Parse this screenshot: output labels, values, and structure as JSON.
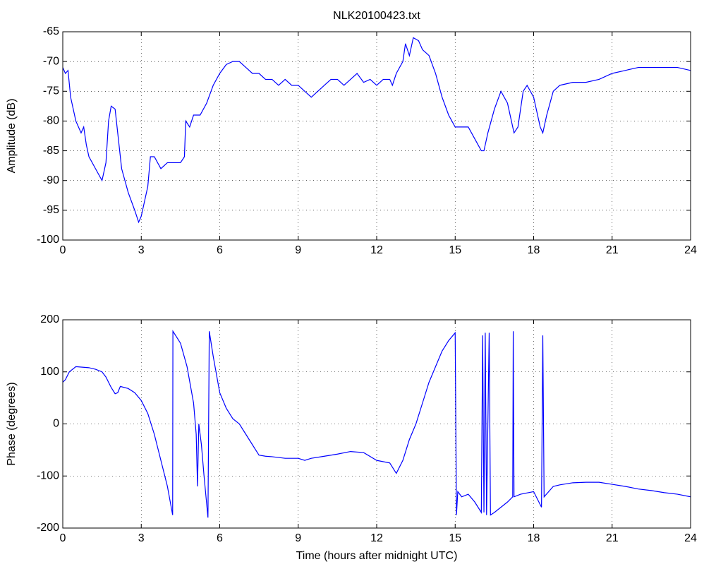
{
  "chart_data": [
    {
      "type": "line",
      "title": "NLK20100423.txt",
      "y_label": "Amplitude (dB)",
      "xlim": [
        0,
        24
      ],
      "xticks": [
        0,
        3,
        6,
        9,
        12,
        15,
        18,
        21,
        24
      ],
      "ylim": [
        -100,
        -65
      ],
      "yticks": [
        -100,
        -95,
        -90,
        -85,
        -80,
        -75,
        -70,
        -65
      ],
      "grid": true,
      "x": [
        0,
        0.1,
        0.2,
        0.3,
        0.5,
        0.7,
        0.8,
        0.9,
        1.0,
        1.25,
        1.5,
        1.65,
        1.75,
        1.85,
        2.0,
        2.1,
        2.25,
        2.5,
        2.75,
        2.9,
        3.0,
        3.1,
        3.25,
        3.35,
        3.5,
        3.75,
        4.0,
        4.25,
        4.5,
        4.65,
        4.7,
        4.85,
        5.0,
        5.25,
        5.5,
        5.75,
        6.0,
        6.25,
        6.5,
        6.75,
        7.0,
        7.25,
        7.5,
        7.75,
        8.0,
        8.25,
        8.5,
        8.75,
        9.0,
        9.25,
        9.5,
        9.75,
        10.0,
        10.25,
        10.5,
        10.75,
        11.0,
        11.25,
        11.5,
        11.75,
        12.0,
        12.25,
        12.5,
        12.6,
        12.75,
        13.0,
        13.1,
        13.25,
        13.4,
        13.6,
        13.75,
        14.0,
        14.25,
        14.5,
        14.75,
        15.0,
        15.25,
        15.5,
        15.75,
        16.0,
        16.1,
        16.25,
        16.5,
        16.75,
        17.0,
        17.25,
        17.4,
        17.6,
        17.75,
        18.0,
        18.25,
        18.35,
        18.5,
        18.75,
        19.0,
        19.5,
        20.0,
        20.5,
        21.0,
        21.5,
        22.0,
        22.5,
        23.0,
        23.5,
        24.0
      ],
      "series": [
        {
          "name": "Amplitude",
          "color": "#0000ff",
          "values": [
            -71,
            -72,
            -71.5,
            -76,
            -80,
            -82,
            -81,
            -84,
            -86,
            -88,
            -90,
            -87,
            -80,
            -77.5,
            -78,
            -82,
            -88,
            -92,
            -95,
            -97,
            -96,
            -94,
            -91,
            -86,
            -86,
            -88,
            -87,
            -87,
            -87,
            -86,
            -80,
            -81,
            -79,
            -79,
            -77,
            -74,
            -72,
            -70.5,
            -70,
            -70,
            -71,
            -72,
            -72,
            -73,
            -73,
            -74,
            -73,
            -74,
            -74,
            -75,
            -76,
            -75,
            -74,
            -73,
            -73,
            -74,
            -73,
            -72,
            -73.5,
            -73,
            -74,
            -73,
            -73,
            -74,
            -72,
            -70,
            -67,
            -69,
            -66,
            -66.5,
            -68,
            -69,
            -72,
            -76,
            -79,
            -81,
            -81,
            -81,
            -83,
            -85,
            -85,
            -82,
            -78,
            -75,
            -77,
            -82,
            -81,
            -75,
            -74,
            -76,
            -81,
            -82,
            -79,
            -75,
            -74,
            -73.5,
            -73.5,
            -73,
            -72,
            -71.5,
            -71,
            -71,
            -71,
            -71,
            -71.5
          ]
        }
      ]
    },
    {
      "type": "line",
      "y_label": "Phase (degrees)",
      "x_label": "Time (hours after midnight UTC)",
      "xlim": [
        0,
        24
      ],
      "xticks": [
        0,
        3,
        6,
        9,
        12,
        15,
        18,
        21,
        24
      ],
      "ylim": [
        -200,
        200
      ],
      "yticks": [
        -200,
        -100,
        0,
        100,
        200
      ],
      "grid": true,
      "x": [
        0,
        0.1,
        0.25,
        0.5,
        1.0,
        1.25,
        1.5,
        1.65,
        1.85,
        2.0,
        2.1,
        2.2,
        2.5,
        2.75,
        3.0,
        3.25,
        3.5,
        3.75,
        4.0,
        4.2,
        4.21,
        4.5,
        4.75,
        5.0,
        5.1,
        5.15,
        5.2,
        5.3,
        5.4,
        5.55,
        5.6,
        5.75,
        6.0,
        6.25,
        6.5,
        6.75,
        7.0,
        7.25,
        7.5,
        7.75,
        8.0,
        8.5,
        9.0,
        9.25,
        9.5,
        10.0,
        10.5,
        11.0,
        11.5,
        12.0,
        12.5,
        12.75,
        13.0,
        13.25,
        13.5,
        13.75,
        14.0,
        14.25,
        14.5,
        14.75,
        15.0,
        15.05,
        15.1,
        15.25,
        15.5,
        15.75,
        16.0,
        16.05,
        16.1,
        16.15,
        16.2,
        16.3,
        16.35,
        16.5,
        16.75,
        17.0,
        17.2,
        17.22,
        17.25,
        17.5,
        18.0,
        18.3,
        18.35,
        18.4,
        18.75,
        19.0,
        19.5,
        20.0,
        20.5,
        21.0,
        21.5,
        22.0,
        22.5,
        23.0,
        23.5,
        24.0
      ],
      "series": [
        {
          "name": "Phase",
          "color": "#0000ff",
          "values": [
            80,
            85,
            100,
            110,
            108,
            105,
            100,
            90,
            70,
            58,
            60,
            72,
            68,
            60,
            45,
            20,
            -20,
            -70,
            -120,
            -175,
            178,
            155,
            110,
            40,
            -20,
            -120,
            0,
            -40,
            -100,
            -180,
            178,
            130,
            60,
            30,
            10,
            0,
            -20,
            -40,
            -60,
            -62,
            -63,
            -66,
            -66,
            -70,
            -66,
            -62,
            -58,
            -53,
            -55,
            -70,
            -75,
            -95,
            -70,
            -30,
            0,
            40,
            80,
            110,
            140,
            160,
            175,
            -175,
            -130,
            -140,
            -135,
            -150,
            -170,
            170,
            -170,
            175,
            -175,
            175,
            -175,
            -170,
            -160,
            -150,
            -140,
            178,
            -140,
            -135,
            -130,
            -160,
            170,
            -140,
            -120,
            -117,
            -113,
            -112,
            -112,
            -116,
            -120,
            -125,
            -128,
            -132,
            -135,
            -140
          ]
        }
      ]
    }
  ]
}
